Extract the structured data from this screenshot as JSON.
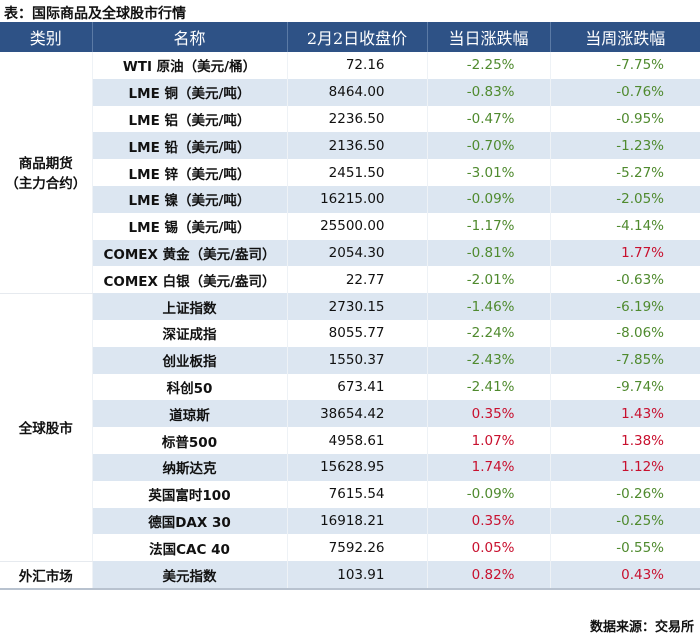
{
  "title": "表：国际商品及全球股市行情",
  "headers": [
    "类别",
    "名称",
    "2月2日收盘价",
    "当日涨跌幅",
    "当周涨跌幅"
  ],
  "groups": [
    {
      "category": "商品期货（主力合约）",
      "rows": [
        {
          "name": "WTI 原油（美元/桶）",
          "price": "72.16",
          "day": "-2.25%",
          "week": "-7.75%"
        },
        {
          "name": "LME 铜（美元/吨）",
          "price": "8464.00",
          "day": "-0.83%",
          "week": "-0.76%"
        },
        {
          "name": "LME 铝（美元/吨）",
          "price": "2236.50",
          "day": "-0.47%",
          "week": "-0.95%"
        },
        {
          "name": "LME 铅（美元/吨）",
          "price": "2136.50",
          "day": "-0.70%",
          "week": "-1.23%"
        },
        {
          "name": "LME 锌（美元/吨）",
          "price": "2451.50",
          "day": "-3.01%",
          "week": "-5.27%"
        },
        {
          "name": "LME 镍（美元/吨）",
          "price": "16215.00",
          "day": "-0.09%",
          "week": "-2.05%"
        },
        {
          "name": "LME 锡（美元/吨）",
          "price": "25500.00",
          "day": "-1.17%",
          "week": "-4.14%"
        },
        {
          "name": "COMEX 黄金（美元/盎司）",
          "price": "2054.30",
          "day": "-0.81%",
          "week": "1.77%"
        },
        {
          "name": "COMEX 白银（美元/盎司）",
          "price": "22.77",
          "day": "-2.01%",
          "week": "-0.63%"
        }
      ]
    },
    {
      "category": "全球股市",
      "rows": [
        {
          "name": "上证指数",
          "price": "2730.15",
          "day": "-1.46%",
          "week": "-6.19%"
        },
        {
          "name": "深证成指",
          "price": "8055.77",
          "day": "-2.24%",
          "week": "-8.06%"
        },
        {
          "name": "创业板指",
          "price": "1550.37",
          "day": "-2.43%",
          "week": "-7.85%"
        },
        {
          "name": "科创50",
          "price": "673.41",
          "day": "-2.41%",
          "week": "-9.74%"
        },
        {
          "name": "道琼斯",
          "price": "38654.42",
          "day": "0.35%",
          "week": "1.43%"
        },
        {
          "name": "标普500",
          "price": "4958.61",
          "day": "1.07%",
          "week": "1.38%"
        },
        {
          "name": "纳斯达克",
          "price": "15628.95",
          "day": "1.74%",
          "week": "1.12%"
        },
        {
          "name": "英国富时100",
          "price": "7615.54",
          "day": "-0.09%",
          "week": "-0.26%"
        },
        {
          "name": "德国DAX 30",
          "price": "16918.21",
          "day": "0.35%",
          "week": "-0.25%"
        },
        {
          "name": "法国CAC 40",
          "price": "7592.26",
          "day": "0.05%",
          "week": "-0.55%"
        }
      ]
    },
    {
      "category": "外汇市场",
      "rows": [
        {
          "name": "美元指数",
          "price": "103.91",
          "day": "0.82%",
          "week": "0.43%"
        }
      ]
    }
  ],
  "source": "数据来源：交易所",
  "colors": {
    "header": "#2e5286",
    "stripe": "#dce6f1",
    "up": "#c8102e",
    "down": "#4f8a2e"
  }
}
